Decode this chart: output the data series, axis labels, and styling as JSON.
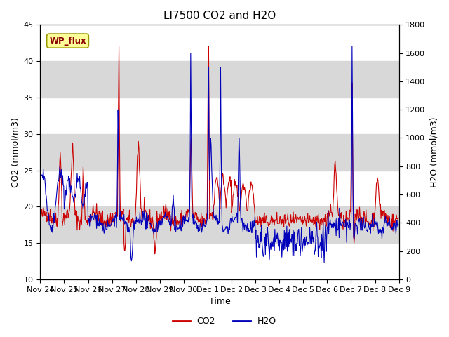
{
  "title": "LI7500 CO2 and H2O",
  "xlabel": "Time",
  "ylabel_left": "CO2 (mmol/m3)",
  "ylabel_right": "H2O (mmol/m3)",
  "co2_ylim": [
    10,
    45
  ],
  "h2o_ylim": [
    0,
    1800
  ],
  "background_color": "#ffffff",
  "band_color": "#d8d8d8",
  "co2_color": "#cc0000",
  "h2o_color": "#0000bb",
  "annotation_text": "WP_flux",
  "annotation_bg": "#ffff99",
  "annotation_border": "#999900",
  "legend_co2": "CO2",
  "legend_h2o": "H2O",
  "title_fontsize": 11,
  "axis_fontsize": 9,
  "tick_fontsize": 8
}
